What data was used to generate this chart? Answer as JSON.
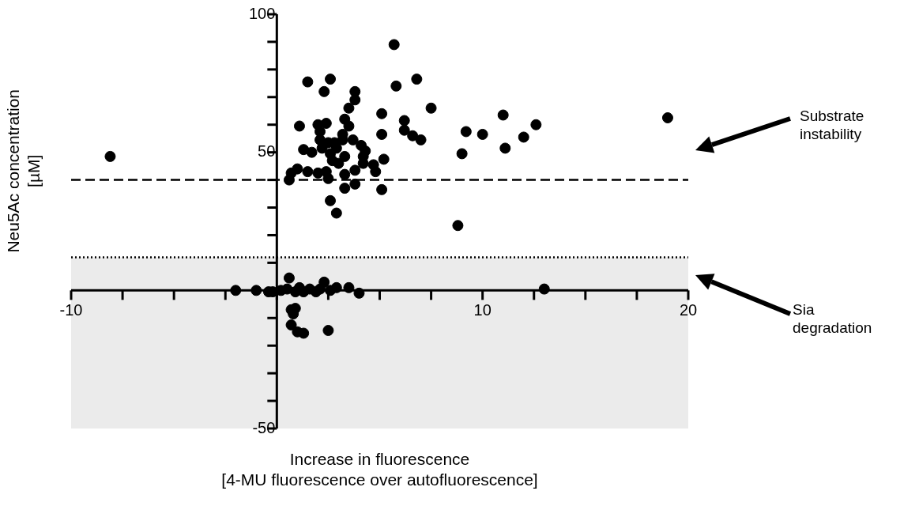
{
  "chart_data": {
    "type": "scatter",
    "xlabel": "Increase in fluorescence\n[4-MU fluorescence over autofluorescence]",
    "ylabel": "Neu5Ac concentration\n[µM]",
    "marker": "circle",
    "color": "#000000",
    "x": [
      -8.1,
      1.5,
      2.6,
      2.3,
      3.8,
      3.8,
      3.5,
      5.1,
      5.7,
      5.8,
      6.8,
      7.5,
      6.2,
      6.2,
      6.6,
      7.0,
      5.1,
      5.2,
      5.1,
      9.2,
      10.0,
      11.0,
      12.6,
      12.0,
      11.1,
      9.0,
      19.0,
      8.8,
      1.1,
      2.0,
      2.4,
      3.3,
      3.5,
      2.1,
      2.1,
      1.3,
      1.7,
      2.2,
      2.8,
      3.2,
      3.7,
      4.1,
      4.3,
      4.2,
      4.2,
      3.8,
      3.3,
      3.0,
      2.6,
      2.7,
      2.9,
      3.2,
      2.5,
      4.7,
      4.8,
      0.6,
      0.7,
      1.0,
      1.5,
      2.0,
      2.4,
      2.5,
      3.3,
      3.3,
      3.8,
      2.6,
      2.9,
      -2.0,
      -1.0,
      -0.4,
      -0.2,
      0.2,
      0.6,
      0.5,
      0.9,
      1.1,
      1.3,
      1.6,
      1.9,
      2.3,
      2.6,
      2.9,
      3.5,
      4.0,
      13.0,
      2.1,
      0.7,
      0.9,
      0.8,
      0.7,
      1.0,
      1.3,
      2.5
    ],
    "values": [
      48.5,
      75.5,
      76.5,
      72,
      72,
      69,
      66,
      64,
      89,
      74,
      76.5,
      66,
      61.5,
      58,
      56,
      54.5,
      56.5,
      47.5,
      36.5,
      57.5,
      56.5,
      63.5,
      60,
      55.5,
      51.5,
      49.5,
      62.5,
      23.5,
      59.5,
      60,
      60.5,
      62,
      59.5,
      57.5,
      54.5,
      51,
      50,
      51.5,
      53.5,
      56.5,
      54.5,
      52.5,
      50.5,
      48.5,
      46,
      43.5,
      48.5,
      46,
      49.5,
      47,
      51.5,
      54.5,
      53.5,
      45.5,
      43,
      40,
      42.5,
      44,
      43,
      42.5,
      43,
      40.5,
      42,
      37,
      38.5,
      32.5,
      28,
      0,
      0,
      -0.5,
      -0.5,
      0,
      4.5,
      0.5,
      -0.5,
      1,
      -0.5,
      0.5,
      -0.5,
      3,
      0,
      1,
      1,
      -1,
      0.5,
      0.5,
      -7,
      -6.5,
      -8.5,
      -12.5,
      -15,
      -15.5,
      -14.5
    ],
    "xlim": [
      -10,
      20
    ],
    "ylim": [
      -50,
      100
    ],
    "xticks": [
      -10,
      {
        "value": -7.5,
        "label": null
      },
      {
        "value": -5,
        "label": null
      },
      {
        "value": -2.5,
        "label": null
      },
      {
        "value": 0,
        "label": null
      },
      {
        "value": 2.5,
        "label": null
      },
      {
        "value": 5,
        "label": null
      },
      {
        "value": 7.5,
        "label": null
      },
      10,
      {
        "value": 12.5,
        "label": null
      },
      {
        "value": 15,
        "label": null
      },
      {
        "value": 17.5,
        "label": null
      },
      20
    ],
    "yticks": [
      -50,
      {
        "value": -40,
        "label": null
      },
      {
        "value": -30,
        "label": null
      },
      {
        "value": -20,
        "label": null
      },
      {
        "value": -10,
        "label": null
      },
      {
        "value": 0,
        "label": null
      },
      {
        "value": 10,
        "label": null
      },
      {
        "value": 20,
        "label": null
      },
      {
        "value": 30,
        "label": null
      },
      {
        "value": 40,
        "label": null
      },
      50,
      {
        "value": 60,
        "label": null
      },
      {
        "value": 70,
        "label": null
      },
      {
        "value": 80,
        "label": null
      },
      {
        "value": 90,
        "label": null
      },
      100
    ],
    "ref_lines": [
      {
        "axis": "y",
        "value": 40,
        "line_style": "dashed",
        "color": "#000000"
      },
      {
        "axis": "y",
        "value": 12,
        "line_style": "dotted",
        "color": "#000000"
      }
    ],
    "bands": [
      {
        "axis": "y",
        "from": -50,
        "to": 12,
        "color": "#ebebeb"
      }
    ],
    "annotations": [
      "Substrate\ninstability",
      "Sia\ndegradation"
    ],
    "grid": false,
    "legend": false
  }
}
